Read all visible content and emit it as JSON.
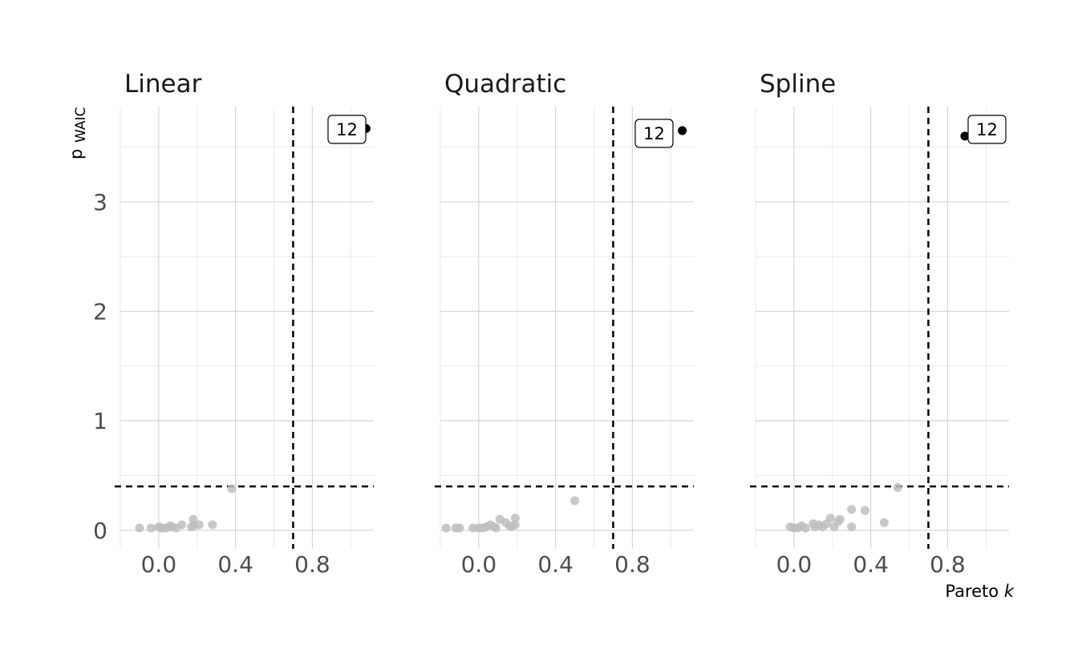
{
  "chart_data": {
    "type": "scatter",
    "facets": [
      "Linear",
      "Quadratic",
      "Spline"
    ],
    "xlabel": "Pareto k",
    "ylabel": "pWAIC",
    "xlim": [
      -0.2,
      1.12
    ],
    "ylim": [
      -0.17,
      3.87
    ],
    "x_ticks": [
      0.0,
      0.4,
      0.8
    ],
    "x_tick_labels": [
      "0.0",
      "0.4",
      "0.8"
    ],
    "y_ticks": [
      0,
      1,
      2,
      3
    ],
    "y_tick_labels": [
      "0",
      "1",
      "2",
      "3"
    ],
    "grid": true,
    "threshold_x": 0.7,
    "threshold_y": 0.4,
    "colors": {
      "normal_point": "#bebebe",
      "highlight_point": "#000000",
      "threshold_line": "#000000",
      "grid_major": "#d3d3d3",
      "grid_minor": "#ebebeb"
    },
    "panels": [
      {
        "title": "Linear",
        "points": [
          {
            "x": -0.1,
            "y": 0.02
          },
          {
            "x": -0.04,
            "y": 0.02
          },
          {
            "x": 0.0,
            "y": 0.03
          },
          {
            "x": 0.01,
            "y": 0.02
          },
          {
            "x": 0.02,
            "y": 0.02
          },
          {
            "x": 0.04,
            "y": 0.02
          },
          {
            "x": 0.06,
            "y": 0.04
          },
          {
            "x": 0.07,
            "y": 0.03
          },
          {
            "x": 0.09,
            "y": 0.02
          },
          {
            "x": 0.12,
            "y": 0.05
          },
          {
            "x": 0.17,
            "y": 0.03
          },
          {
            "x": 0.18,
            "y": 0.04
          },
          {
            "x": 0.18,
            "y": 0.1
          },
          {
            "x": 0.21,
            "y": 0.05
          },
          {
            "x": 0.28,
            "y": 0.05
          },
          {
            "x": 0.38,
            "y": 0.38
          }
        ],
        "highlight": [
          {
            "x": 1.08,
            "y": 3.67,
            "label": "12"
          }
        ]
      },
      {
        "title": "Quadratic",
        "points": [
          {
            "x": -0.17,
            "y": 0.02
          },
          {
            "x": -0.12,
            "y": 0.02
          },
          {
            "x": -0.1,
            "y": 0.02
          },
          {
            "x": -0.03,
            "y": 0.02
          },
          {
            "x": 0.0,
            "y": 0.02
          },
          {
            "x": 0.02,
            "y": 0.02
          },
          {
            "x": 0.04,
            "y": 0.03
          },
          {
            "x": 0.06,
            "y": 0.05
          },
          {
            "x": 0.08,
            "y": 0.03
          },
          {
            "x": 0.09,
            "y": 0.02
          },
          {
            "x": 0.11,
            "y": 0.1
          },
          {
            "x": 0.14,
            "y": 0.07
          },
          {
            "x": 0.16,
            "y": 0.04
          },
          {
            "x": 0.17,
            "y": 0.03
          },
          {
            "x": 0.19,
            "y": 0.05
          },
          {
            "x": 0.19,
            "y": 0.11
          },
          {
            "x": 0.5,
            "y": 0.27
          }
        ],
        "highlight": [
          {
            "x": 1.06,
            "y": 3.65,
            "label": "12"
          }
        ]
      },
      {
        "title": "Spline",
        "points": [
          {
            "x": -0.02,
            "y": 0.03
          },
          {
            "x": 0.0,
            "y": 0.02
          },
          {
            "x": 0.02,
            "y": 0.02
          },
          {
            "x": 0.04,
            "y": 0.04
          },
          {
            "x": 0.06,
            "y": 0.02
          },
          {
            "x": 0.1,
            "y": 0.06
          },
          {
            "x": 0.11,
            "y": 0.03
          },
          {
            "x": 0.13,
            "y": 0.05
          },
          {
            "x": 0.15,
            "y": 0.03
          },
          {
            "x": 0.17,
            "y": 0.06
          },
          {
            "x": 0.19,
            "y": 0.11
          },
          {
            "x": 0.21,
            "y": 0.03
          },
          {
            "x": 0.23,
            "y": 0.08
          },
          {
            "x": 0.24,
            "y": 0.1
          },
          {
            "x": 0.3,
            "y": 0.19
          },
          {
            "x": 0.3,
            "y": 0.03
          },
          {
            "x": 0.37,
            "y": 0.18
          },
          {
            "x": 0.47,
            "y": 0.07
          },
          {
            "x": 0.54,
            "y": 0.39
          }
        ],
        "highlight": [
          {
            "x": 0.89,
            "y": 3.6,
            "label": "12"
          }
        ]
      }
    ]
  }
}
